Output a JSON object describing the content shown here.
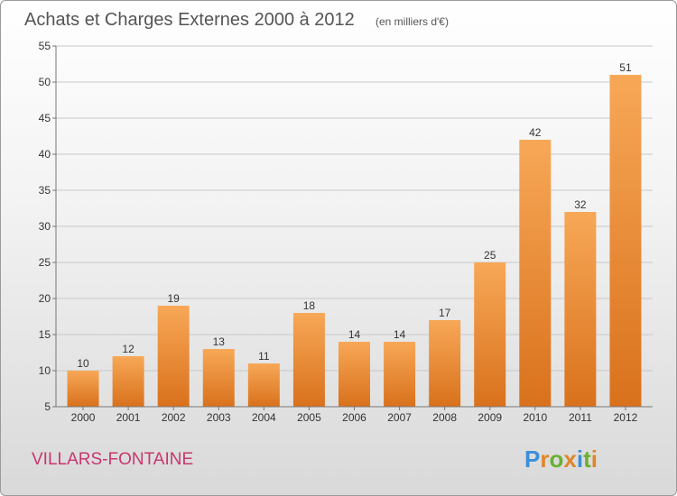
{
  "title": "Achats et Charges Externes 2000 à 2012",
  "subtitle": "(en milliers d'€)",
  "commune": "VILLARS-FONTAINE",
  "logo": {
    "text": "Proxiti",
    "letters": [
      {
        "char": "P",
        "color": "#3a8fd9"
      },
      {
        "char": "r",
        "color": "#e0862a"
      },
      {
        "char": "o",
        "color": "#6ab034"
      },
      {
        "char": "x",
        "color": "#e0862a"
      },
      {
        "char": "i",
        "color": "#3a8fd9"
      },
      {
        "char": "t",
        "color": "#6ab034"
      },
      {
        "char": "i",
        "color": "#e0862a"
      }
    ]
  },
  "colors": {
    "bar_top": "#f7a857",
    "bar_bottom": "#d9711c",
    "grid": "#c8c8c8",
    "axis": "#777777"
  },
  "chart_data": {
    "type": "bar",
    "categories": [
      "2000",
      "2001",
      "2002",
      "2003",
      "2004",
      "2005",
      "2006",
      "2007",
      "2008",
      "2009",
      "2010",
      "2011",
      "2012"
    ],
    "values": [
      10,
      12,
      19,
      13,
      11,
      18,
      14,
      14,
      17,
      25,
      42,
      32,
      51
    ],
    "ylim": [
      5,
      55
    ],
    "yticks": [
      5,
      10,
      15,
      20,
      25,
      30,
      35,
      40,
      45,
      50,
      55
    ],
    "grid": true,
    "legend": "none"
  }
}
